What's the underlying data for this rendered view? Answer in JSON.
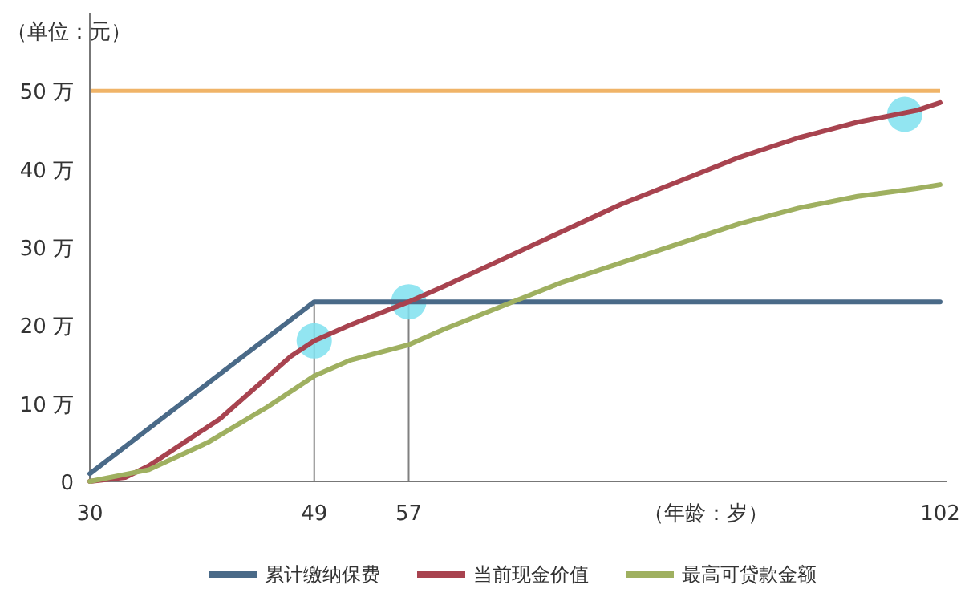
{
  "chart_data": {
    "type": "line",
    "ylabel": "（单位：元）",
    "xlabel": "（年龄：岁）",
    "xlim": [
      30,
      102
    ],
    "xticks": [
      30,
      49,
      57,
      102
    ],
    "ylim": [
      0,
      60
    ],
    "yticks": [
      0,
      {
        "value": 10,
        "label": "10 万"
      },
      {
        "value": 20,
        "label": "20 万"
      },
      {
        "value": 30,
        "label": "30 万"
      },
      {
        "value": 40,
        "label": "40 万"
      },
      {
        "value": 50,
        "label": "50 万"
      }
    ],
    "grid": false,
    "legend": "bottom",
    "line_style": "solid",
    "series": [
      {
        "name": "累计缴纳保费",
        "color": "#4a6a88",
        "x": [
          30,
          49,
          102
        ],
        "values": [
          1,
          23,
          23
        ]
      },
      {
        "name": "当前现金价值",
        "color": "#a8434f",
        "x": [
          30,
          33,
          35,
          38,
          41,
          44,
          47,
          49,
          52,
          57,
          60,
          65,
          70,
          75,
          80,
          85,
          90,
          95,
          100,
          102
        ],
        "values": [
          0,
          0.5,
          2,
          5,
          8,
          12,
          16,
          18,
          20,
          23,
          25,
          28.5,
          32,
          35.5,
          38.5,
          41.5,
          44,
          46,
          47.5,
          48.5
        ]
      },
      {
        "name": "最高可贷款金额",
        "color": "#9fb060",
        "x": [
          30,
          35,
          40,
          45,
          49,
          52,
          57,
          60,
          65,
          70,
          75,
          80,
          85,
          90,
          95,
          100,
          102
        ],
        "values": [
          0,
          1.5,
          5,
          9.5,
          13.5,
          15.5,
          17.5,
          19.5,
          22.5,
          25.5,
          28,
          30.5,
          33,
          35,
          36.5,
          37.5,
          38
        ]
      },
      {
        "type": "scatter",
        "color": "#7fe0ee",
        "x": [
          49,
          57,
          99
        ],
        "values": [
          18,
          23,
          47
        ]
      }
    ],
    "ref_lines": [
      {
        "axis": "y",
        "value": 50,
        "color": "#f0b468"
      },
      {
        "axis": "x",
        "value": 49,
        "color": "#808080"
      },
      {
        "axis": "x",
        "value": 57,
        "color": "#808080"
      }
    ]
  }
}
